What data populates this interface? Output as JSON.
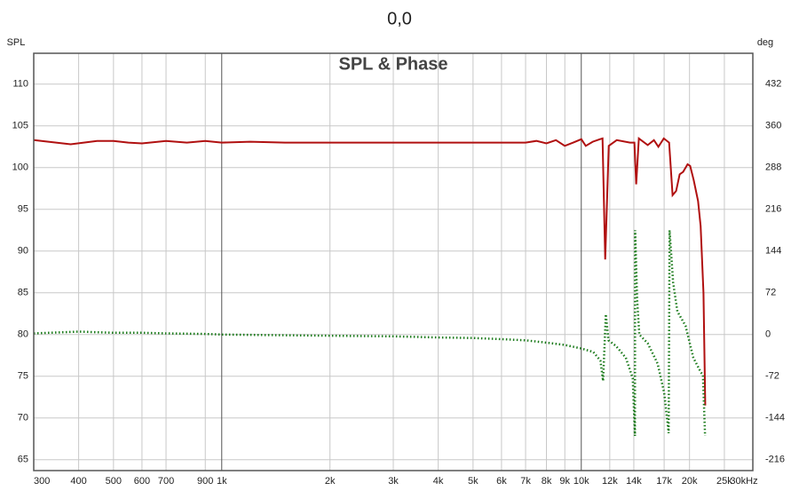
{
  "chart_data": {
    "type": "line",
    "title": "0,0",
    "plot_title": "SPL & Phase",
    "y_label": "SPL",
    "y2_label": "deg",
    "log_x": true,
    "grid": true,
    "xlim": [
      300,
      30000
    ],
    "xticks": [
      300,
      400,
      500,
      600,
      700,
      900,
      {
        "value": 1000,
        "label": "1k"
      },
      {
        "value": 2000,
        "label": "2k"
      },
      {
        "value": 3000,
        "label": "3k"
      },
      {
        "value": 4000,
        "label": "4k"
      },
      {
        "value": 5000,
        "label": "5k"
      },
      {
        "value": 6000,
        "label": "6k"
      },
      {
        "value": 7000,
        "label": "7k"
      },
      {
        "value": 8000,
        "label": "8k"
      },
      {
        "value": 9000,
        "label": "9k"
      },
      {
        "value": 10000,
        "label": "10k"
      },
      {
        "value": 12000,
        "label": "12k"
      },
      {
        "value": 14000,
        "label": "14k"
      },
      {
        "value": 17000,
        "label": "17k"
      },
      {
        "value": 20000,
        "label": "20k"
      },
      {
        "value": 25000,
        "label": "25k"
      },
      {
        "value": 30000,
        "label": "30kHz"
      }
    ],
    "ylim": [
      63.7,
      113.7
    ],
    "yticks": [
      65,
      70,
      75,
      80,
      85,
      90,
      95,
      100,
      105,
      110
    ],
    "y2lim": [
      -234.7,
      485.3
    ],
    "y2ticks": [
      -216,
      -144,
      -72,
      0,
      72,
      144,
      216,
      288,
      360,
      432
    ],
    "series": [
      {
        "color": "#b01010",
        "x": [
          300,
          380,
          450,
          500,
          550,
          600,
          700,
          800,
          900,
          1000,
          1200,
          1500,
          2000,
          3000,
          4000,
          5000,
          6000,
          7000,
          7500,
          8000,
          8500,
          9000,
          9500,
          10000,
          10288,
          10765,
          11266,
          11458,
          11654,
          11921,
          12550,
          13660,
          14053,
          14216,
          14456,
          15302,
          15920,
          16386,
          16958,
          17546,
          17945,
          18355,
          18774,
          19201,
          19754,
          20080,
          20540,
          21120,
          21480,
          21870,
          22120
        ],
        "values": [
          103.3,
          102.8,
          103.2,
          103.2,
          103.0,
          102.9,
          103.2,
          103.0,
          103.2,
          103.0,
          103.1,
          103.0,
          103.0,
          103.0,
          103.0,
          103.0,
          103.0,
          103.0,
          103.2,
          102.9,
          103.3,
          102.6,
          103.0,
          103.4,
          102.6,
          103.1,
          103.4,
          103.5,
          89.0,
          102.6,
          103.3,
          103.0,
          103.0,
          98.0,
          103.5,
          102.7,
          103.3,
          102.5,
          103.5,
          103.0,
          96.7,
          97.2,
          99.2,
          99.5,
          100.4,
          100.2,
          98.5,
          96.0,
          93.0,
          85.0,
          71.5
        ]
      },
      {
        "color": "#1a7a1a",
        "axis": "y2",
        "x": [
          300,
          400,
          500,
          600,
          700,
          900,
          1000,
          2000,
          3000,
          4000,
          5000,
          6000,
          7000,
          8000,
          9000,
          10000,
          10800,
          11300,
          11500,
          11700,
          11900,
          12500,
          13300,
          13900,
          14100,
          14120,
          14300,
          14500,
          15300,
          16300,
          17000,
          17500,
          17600,
          18000,
          18500,
          19500,
          20500,
          21500,
          21800,
          22100
        ],
        "values": [
          2,
          5,
          3,
          3,
          2,
          1,
          0,
          -2,
          -3,
          -5,
          -6,
          -8,
          -10,
          -14,
          -18,
          -24,
          -30,
          -45,
          -80,
          35,
          -10,
          -20,
          -40,
          -75,
          -175,
          180,
          60,
          0,
          -15,
          -50,
          -100,
          -170,
          180,
          90,
          40,
          15,
          -40,
          -65,
          -70,
          -175
        ]
      }
    ]
  }
}
